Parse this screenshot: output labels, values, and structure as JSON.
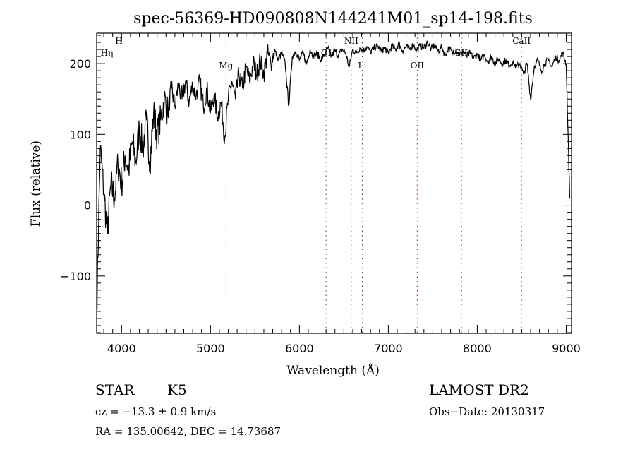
{
  "chart_data": {
    "type": "line",
    "title": "spec-56369-HD090808N144241M01_sp14-198.fits",
    "xlabel": "Wavelength (Å)",
    "ylabel": "Flux (relative)",
    "xlim": [
      3720,
      9060
    ],
    "ylim": [
      -181,
      243
    ],
    "grid": false,
    "xticks": [
      4000,
      5000,
      6000,
      7000,
      8000,
      9000
    ],
    "yticks": [
      -100,
      0,
      100,
      200
    ],
    "xtick_labels": [
      "4000",
      "5000",
      "6000",
      "7000",
      "8000",
      "9000"
    ],
    "ytick_labels": [
      "−100",
      "0",
      "100",
      "200"
    ],
    "lines": [
      {
        "label": "Hη",
        "wavelength": 3835,
        "label_row": 2
      },
      {
        "label": "H",
        "wavelength": 3970,
        "label_row": 1
      },
      {
        "label": "Mg",
        "wavelength": 5175,
        "label_row": 3
      },
      {
        "label": "OI",
        "wavelength": 6300,
        "label_row": 2
      },
      {
        "label": "NII",
        "wavelength": 6583,
        "label_row": 1
      },
      {
        "label": "Li",
        "wavelength": 6707,
        "label_row": 3
      },
      {
        "label": "OII",
        "wavelength": 7325,
        "label_row": 3
      },
      {
        "label": "SII",
        "wavelength": 7823,
        "label_row": 2
      },
      {
        "label": "CaII",
        "wavelength": 8498,
        "label_row": 1
      }
    ],
    "series": [
      {
        "name": "flux",
        "x": [
          3720,
          3760,
          3800,
          3840,
          3880,
          3920,
          3960,
          4000,
          4040,
          4080,
          4120,
          4160,
          4200,
          4240,
          4280,
          4320,
          4360,
          4400,
          4440,
          4480,
          4520,
          4560,
          4600,
          4640,
          4680,
          4720,
          4760,
          4800,
          4840,
          4880,
          4920,
          4960,
          5000,
          5040,
          5080,
          5120,
          5160,
          5200,
          5240,
          5280,
          5320,
          5360,
          5400,
          5440,
          5480,
          5520,
          5560,
          5600,
          5640,
          5680,
          5720,
          5760,
          5800,
          5840,
          5880,
          5920,
          5960,
          6000,
          6040,
          6080,
          6120,
          6160,
          6200,
          6240,
          6280,
          6320,
          6360,
          6400,
          6440,
          6480,
          6520,
          6560,
          6600,
          6640,
          6680,
          6720,
          6760,
          6800,
          6840,
          6880,
          6920,
          6960,
          7000,
          7040,
          7080,
          7120,
          7160,
          7200,
          7240,
          7280,
          7320,
          7360,
          7400,
          7440,
          7480,
          7520,
          7560,
          7600,
          7640,
          7680,
          7720,
          7760,
          7800,
          7840,
          7880,
          7920,
          7960,
          8000,
          8040,
          8080,
          8120,
          8160,
          8200,
          8240,
          8280,
          8320,
          8360,
          8400,
          8440,
          8480,
          8520,
          8560,
          8600,
          8640,
          8680,
          8720,
          8760,
          8800,
          8840,
          8880,
          8920,
          8960,
          9000,
          9040
        ],
        "y": [
          -150,
          80,
          20,
          -40,
          30,
          10,
          60,
          30,
          70,
          50,
          90,
          60,
          110,
          80,
          120,
          60,
          130,
          100,
          120,
          150,
          130,
          165,
          140,
          170,
          150,
          175,
          145,
          170,
          155,
          175,
          140,
          165,
          130,
          155,
          125,
          145,
          95,
          150,
          175,
          150,
          185,
          165,
          195,
          175,
          200,
          185,
          205,
          185,
          215,
          200,
          220,
          205,
          215,
          200,
          140,
          210,
          218,
          205,
          215,
          200,
          220,
          210,
          215,
          205,
          212,
          222,
          210,
          218,
          212,
          220,
          215,
          195,
          220,
          215,
          222,
          218,
          224,
          216,
          222,
          225,
          218,
          222,
          215,
          225,
          220,
          228,
          218,
          224,
          220,
          227,
          219,
          225,
          222,
          230,
          220,
          226,
          218,
          223,
          212,
          222,
          215,
          220,
          212,
          218,
          210,
          215,
          208,
          213,
          205,
          212,
          203,
          210,
          200,
          207,
          200,
          205,
          198,
          202,
          195,
          200,
          185,
          200,
          150,
          195,
          205,
          190,
          200,
          205,
          195,
          210,
          205,
          215,
          200,
          10
        ]
      }
    ]
  },
  "info": {
    "object_class": "STAR",
    "subclass": "K5",
    "survey": "LAMOST DR2",
    "cz": "cz = −13.3 ± 0.9 km/s",
    "obs_date": "Obs−Date: 20130317",
    "coords": "RA = 135.00642, DEC =  14.73687"
  }
}
